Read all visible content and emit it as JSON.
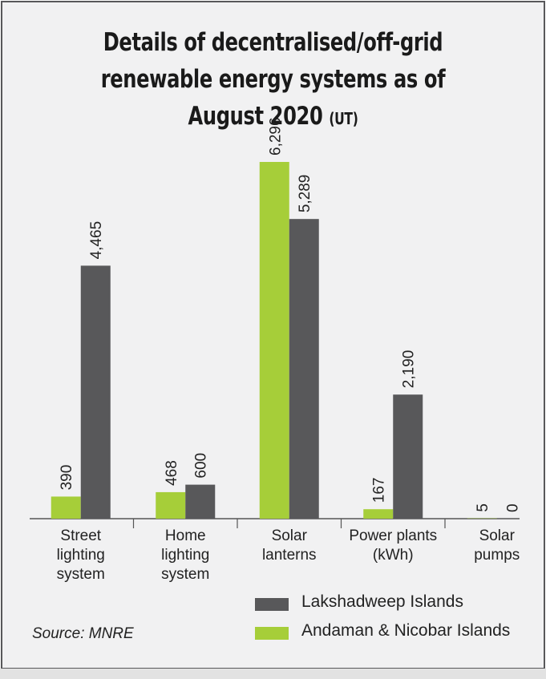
{
  "chart_data": {
    "type": "bar",
    "title": "Details of decentralised/off-grid renewable energy systems as of August 2020",
    "title_suffix": "(UT)",
    "categories": [
      "Street lighting system",
      "Home lighting system",
      "Solar lanterns",
      "Power plants (kWh)",
      "Solar pumps"
    ],
    "category_lines": [
      [
        "Street",
        "lighting",
        "system"
      ],
      [
        "Home",
        "lighting",
        "system"
      ],
      [
        "Solar",
        "lanterns"
      ],
      [
        "Power plants",
        "(kWh)"
      ],
      [
        "Solar",
        "pumps"
      ]
    ],
    "series": [
      {
        "name": "Andaman & Nicobar Islands",
        "color": "#a6ce39",
        "values": [
          390,
          468,
          6296,
          167,
          5
        ],
        "labels": [
          "390",
          "468",
          "6,296",
          "167",
          "5"
        ]
      },
      {
        "name": "Lakshadweep Islands",
        "color": "#58585a",
        "values": [
          4465,
          600,
          5289,
          2190,
          0
        ],
        "labels": [
          "4,465",
          "600",
          "5,289",
          "2,190",
          "0"
        ]
      }
    ],
    "ylim": [
      0,
      6296
    ],
    "legend_placement": "bottom-right",
    "grid": false
  },
  "source": "Source: MNRE"
}
